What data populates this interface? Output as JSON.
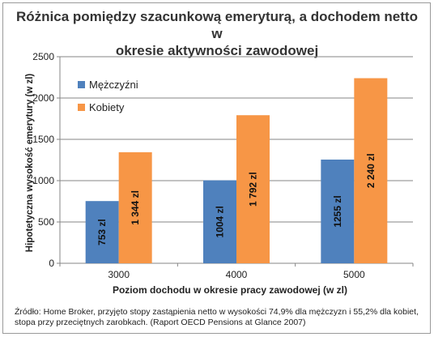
{
  "chart_data": {
    "type": "bar",
    "title": [
      "Różnica pomiędzy szacunkową emeryturą, a dochodem  netto w",
      "okresie aktywności  zawodowej"
    ],
    "xlabel": "Poziom dochodu w okresie pracy zawodowej (w zl)",
    "ylabel": "Hipotetyczna wysokość emerytury (w zl)",
    "ylim": [
      0,
      2500
    ],
    "yticks": [
      "0",
      "500",
      "1000",
      "1500",
      "2000",
      "2500"
    ],
    "categories": [
      "3000",
      "4000",
      "5000"
    ],
    "series": [
      {
        "name": "Mężczyźni",
        "color": "#4f81bd",
        "values": [
          753,
          1004,
          1255
        ],
        "labels": [
          "753 zl",
          "1004 zl",
          "1255 zl"
        ]
      },
      {
        "name": "Kobiety",
        "color": "#f79646",
        "values": [
          1344,
          1792,
          2240
        ],
        "labels": [
          "1 344 zl",
          "1 792 zl",
          "2 240 zl"
        ]
      }
    ],
    "grid": true,
    "legend_position": "top-left"
  },
  "source": [
    "Źródło: Home Broker, przyjęto stopy zastąpienia netto w wysokości 74,9% dla mężczyzn i 55,2% dla kobiet,",
    "stopa przy przeciętnych zarobkach. (Raport OECD Pensions at Glance 2007)"
  ]
}
